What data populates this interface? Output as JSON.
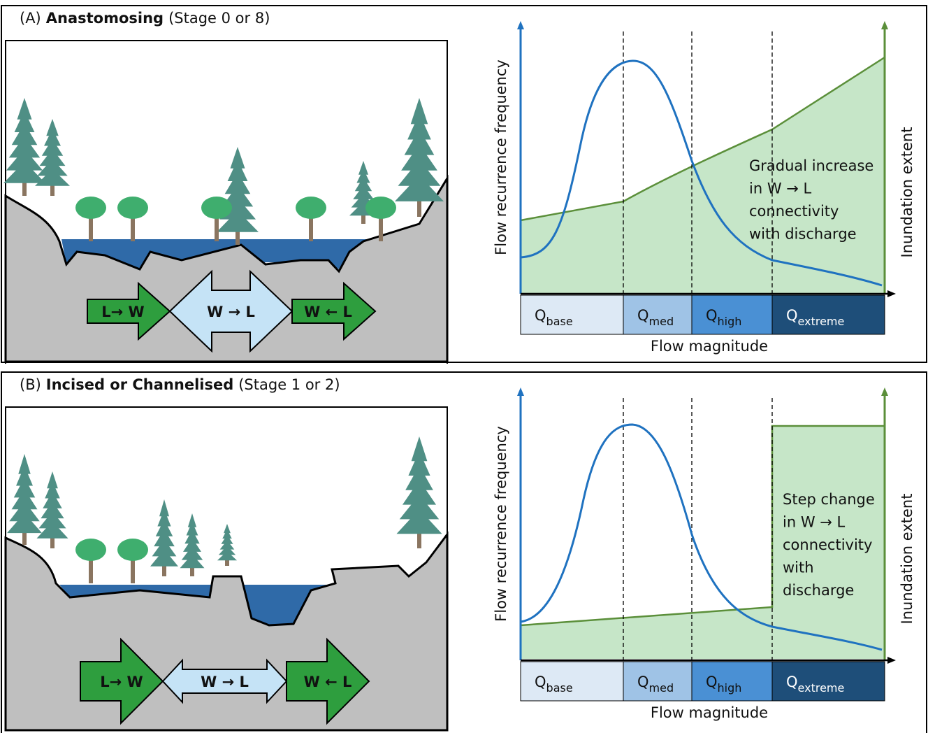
{
  "panels": [
    {
      "label": "(A)",
      "title": "Anastomosing",
      "subtitle": "(Stage 0 or 8)",
      "arrows": [
        "L→ W",
        "W → L",
        "W ← L"
      ],
      "y_label": "Flow recurrence frequency",
      "y2_label": "Inundation extent",
      "x_label": "Flow magnitude",
      "bins": [
        {
          "symbol": "Q",
          "subscript": "base"
        },
        {
          "symbol": "Q",
          "subscript": "med"
        },
        {
          "symbol": "Q",
          "subscript": "high"
        },
        {
          "symbol": "Q",
          "subscript": "extreme"
        }
      ],
      "annotation": [
        "Gradual increase",
        "in W → L",
        " connectivity",
        "with discharge"
      ]
    },
    {
      "label": "(B)",
      "title": "Incised or Channelised",
      "subtitle": "(Stage 1 or 2)",
      "arrows": [
        "L→ W",
        "W → L",
        "W ← L"
      ],
      "y_label": "Flow recurrence frequency",
      "y2_label": "Inundation extent",
      "x_label": "Flow magnitude",
      "bins": [
        {
          "symbol": "Q",
          "subscript": "base"
        },
        {
          "symbol": "Q",
          "subscript": "med"
        },
        {
          "symbol": "Q",
          "subscript": "high"
        },
        {
          "symbol": "Q",
          "subscript": "extreme"
        }
      ],
      "annotation": [
        "Step change",
        "in W → L",
        "connectivity",
        "with",
        "discharge"
      ]
    }
  ]
}
